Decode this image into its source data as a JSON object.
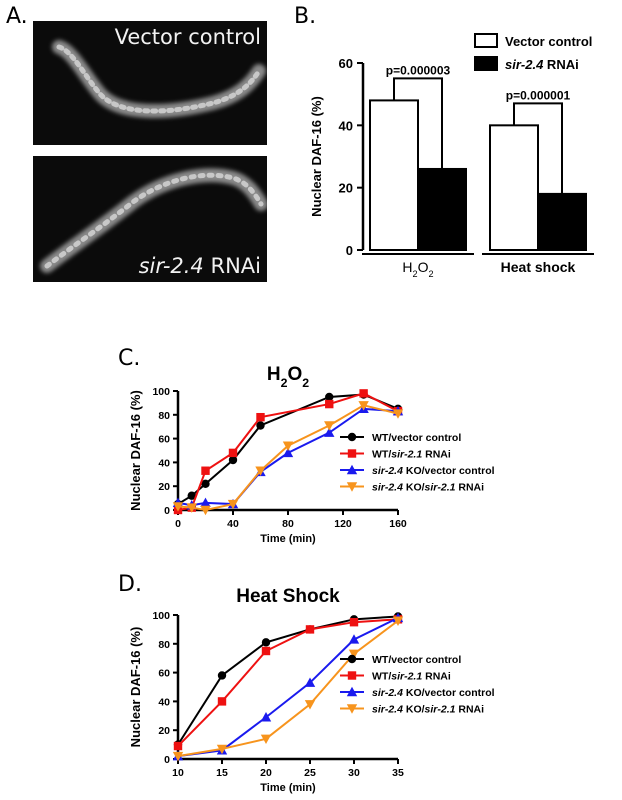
{
  "panels": {
    "a_letter": "A.",
    "b_letter": "B.",
    "c_letter": "C.",
    "d_letter": "D."
  },
  "micrographs": [
    {
      "label_parts": [
        {
          "text": "Vector control",
          "italic": false
        }
      ]
    },
    {
      "label_parts": [
        {
          "text": "sir-2.4",
          "italic": true
        },
        {
          "text": " RNAi",
          "italic": false
        }
      ]
    }
  ],
  "chart_data": [
    {
      "id": "B",
      "type": "bar",
      "ylabel": "Nuclear DAF-16 (%)",
      "xlabel": "",
      "ylim": [
        0,
        60
      ],
      "yticks": [
        0,
        20,
        40,
        60
      ],
      "groups": [
        {
          "label": "H2O2",
          "label_html": "H<tspan baseline-shift='sub' font-size='9'>2</tspan>O<tspan baseline-shift='sub' font-size='9'>2</tspan>"
        },
        {
          "label": "Heat shock"
        }
      ],
      "series": [
        {
          "name": "Vector control",
          "name_parts": [
            {
              "text": "Vector control",
              "italic": false
            }
          ],
          "color": "#ffffff",
          "values": [
            48,
            40
          ]
        },
        {
          "name": "sir-2.4 RNAi",
          "name_parts": [
            {
              "text": "sir-2.4",
              "italic": true
            },
            {
              "text": " RNAi",
              "italic": false
            }
          ],
          "color": "#000000",
          "values": [
            26,
            18
          ]
        }
      ],
      "annotations": [
        "p=0.000003",
        "p=0.000001"
      ],
      "legend_position": "top-right"
    },
    {
      "id": "C",
      "type": "line",
      "title": "H2O2",
      "xlabel": "Time (min)",
      "ylabel": "Nuclear DAF-16 (%)",
      "xlim": [
        0,
        160
      ],
      "ylim": [
        0,
        100
      ],
      "xticks": [
        0,
        40,
        80,
        120,
        160
      ],
      "yticks": [
        0,
        20,
        40,
        60,
        80,
        100
      ],
      "legend_position": "bottom-right",
      "series": [
        {
          "name": "WT/vector control",
          "name_parts": [
            {
              "text": "WT/vector control",
              "italic": false
            }
          ],
          "color": "#000000",
          "marker": "circle",
          "x": [
            0,
            10,
            20,
            40,
            60,
            110,
            135,
            160
          ],
          "y": [
            5,
            12,
            22,
            42,
            71,
            95,
            97,
            85
          ]
        },
        {
          "name": "WT/sir-2.1 RNAi",
          "name_parts": [
            {
              "text": "WT/",
              "italic": false
            },
            {
              "text": "sir-2.1",
              "italic": true
            },
            {
              "text": " RNAi",
              "italic": false
            }
          ],
          "color": "#ee1111",
          "marker": "square",
          "x": [
            0,
            10,
            20,
            40,
            60,
            110,
            135,
            160
          ],
          "y": [
            0,
            2,
            33,
            48,
            78,
            89,
            98,
            83
          ]
        },
        {
          "name": "sir-2.4 KO/vector control",
          "name_parts": [
            {
              "text": "sir-2.4",
              "italic": true
            },
            {
              "text": " KO/vector control",
              "italic": false
            }
          ],
          "color": "#1a1aee",
          "marker": "triangle-up",
          "x": [
            0,
            10,
            20,
            40,
            60,
            80,
            110,
            135,
            160
          ],
          "y": [
            6,
            4,
            6,
            5,
            32,
            48,
            65,
            85,
            83
          ]
        },
        {
          "name": "sir-2.4 KO/sir-2.1 RNAi",
          "name_parts": [
            {
              "text": "sir-2.4",
              "italic": true
            },
            {
              "text": " KO/",
              "italic": false
            },
            {
              "text": "sir-2.1",
              "italic": true
            },
            {
              "text": " RNAi",
              "italic": false
            }
          ],
          "color": "#f7941d",
          "marker": "triangle-down",
          "x": [
            0,
            10,
            20,
            40,
            60,
            80,
            110,
            135,
            160
          ],
          "y": [
            3,
            2,
            0,
            5,
            33,
            54,
            71,
            88,
            81
          ]
        }
      ]
    },
    {
      "id": "D",
      "type": "line",
      "title": "Heat Shock",
      "xlabel": "Time (min)",
      "ylabel": "Nuclear DAF-16 (%)",
      "xlim": [
        10,
        35
      ],
      "ylim": [
        0,
        100
      ],
      "xticks": [
        10,
        15,
        20,
        25,
        30,
        35
      ],
      "yticks": [
        0,
        20,
        40,
        60,
        80,
        100
      ],
      "legend_position": "bottom-right",
      "series": [
        {
          "name": "WT/vector control",
          "name_parts": [
            {
              "text": "WT/vector control",
              "italic": false
            }
          ],
          "color": "#000000",
          "marker": "circle",
          "x": [
            10,
            15,
            20,
            25,
            30,
            35
          ],
          "y": [
            10,
            58,
            81,
            90,
            97,
            99
          ]
        },
        {
          "name": "WT/sir-2.1 RNAi",
          "name_parts": [
            {
              "text": "WT/",
              "italic": false
            },
            {
              "text": "sir-2.1",
              "italic": true
            },
            {
              "text": " RNAi",
              "italic": false
            }
          ],
          "color": "#ee1111",
          "marker": "square",
          "x": [
            10,
            15,
            20,
            25,
            30,
            35
          ],
          "y": [
            9,
            40,
            75,
            90,
            95,
            97
          ]
        },
        {
          "name": "sir-2.4 KO/vector control",
          "name_parts": [
            {
              "text": "sir-2.4",
              "italic": true
            },
            {
              "text": " KO/vector control",
              "italic": false
            }
          ],
          "color": "#1a1aee",
          "marker": "triangle-up",
          "x": [
            10,
            15,
            20,
            25,
            30,
            35
          ],
          "y": [
            2,
            6,
            29,
            53,
            83,
            98
          ]
        },
        {
          "name": "sir-2.4 KO/sir-2.1 RNAi",
          "name_parts": [
            {
              "text": "sir-2.4",
              "italic": true
            },
            {
              "text": " KO/",
              "italic": false
            },
            {
              "text": "sir-2.1",
              "italic": true
            },
            {
              "text": " RNAi",
              "italic": false
            }
          ],
          "color": "#f7941d",
          "marker": "triangle-down",
          "x": [
            10,
            15,
            20,
            25,
            30,
            35
          ],
          "y": [
            2,
            7,
            14,
            38,
            73,
            96
          ]
        }
      ]
    }
  ]
}
